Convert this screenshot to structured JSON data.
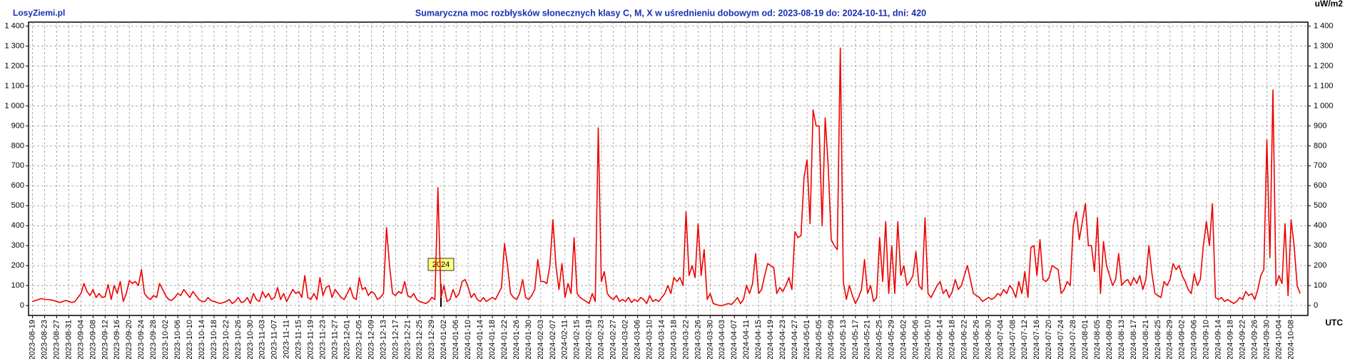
{
  "site": "LosyZiemi.pl",
  "chart_data": {
    "type": "line",
    "title": "Sumaryczna moc rozbłysków słonecznych klasy C, M, X w uśrednieniu dobowym od: 2023-08-19 do: 2024-10-11, dni: 420",
    "y_unit": "uW/m2",
    "x_unit": "UTC",
    "annotation": "2024",
    "color": "#ee0000",
    "grid": true,
    "ylim": [
      -50,
      1420
    ],
    "yticks": [
      0,
      100,
      200,
      300,
      400,
      500,
      600,
      700,
      800,
      900,
      {
        "value": 1000,
        "label": "1 000"
      },
      {
        "value": 1100,
        "label": "1 100"
      },
      {
        "value": 1200,
        "label": "1 200"
      },
      {
        "value": 1300,
        "label": "1 300"
      },
      {
        "value": 1400,
        "label": "1 400"
      }
    ],
    "categories": [
      "2023-08-19",
      null,
      null,
      null,
      "2023-08-23",
      null,
      null,
      null,
      "2023-08-27",
      null,
      null,
      null,
      "2023-08-31",
      null,
      null,
      null,
      "2023-09-04",
      null,
      null,
      null,
      "2023-09-08",
      null,
      null,
      null,
      "2023-09-12",
      null,
      null,
      null,
      "2023-09-16",
      null,
      null,
      null,
      "2023-09-20",
      null,
      null,
      null,
      "2023-09-24",
      null,
      null,
      null,
      "2023-09-28",
      null,
      null,
      null,
      "2023-10-02",
      null,
      null,
      null,
      "2023-10-06",
      null,
      null,
      null,
      "2023-10-10",
      null,
      null,
      null,
      "2023-10-14",
      null,
      null,
      null,
      "2023-10-18",
      null,
      null,
      null,
      "2023-10-22",
      null,
      null,
      null,
      "2023-10-26",
      null,
      null,
      null,
      "2023-10-30",
      null,
      null,
      null,
      "2023-11-03",
      null,
      null,
      null,
      "2023-11-07",
      null,
      null,
      null,
      "2023-11-11",
      null,
      null,
      null,
      "2023-11-15",
      null,
      null,
      null,
      "2023-11-19",
      null,
      null,
      null,
      "2023-11-23",
      null,
      null,
      null,
      "2023-11-27",
      null,
      null,
      null,
      "2023-12-01",
      null,
      null,
      null,
      "2023-12-05",
      null,
      null,
      null,
      "2023-12-09",
      null,
      null,
      null,
      "2023-12-13",
      null,
      null,
      null,
      "2023-12-17",
      null,
      null,
      null,
      "2023-12-21",
      null,
      null,
      null,
      "2023-12-25",
      null,
      null,
      null,
      "2023-12-29",
      null,
      null,
      null,
      "2024-01-02",
      null,
      null,
      null,
      "2024-01-06",
      null,
      null,
      null,
      "2024-01-10",
      null,
      null,
      null,
      "2024-01-14",
      null,
      null,
      null,
      "2024-01-18",
      null,
      null,
      null,
      "2024-01-22",
      null,
      null,
      null,
      "2024-01-26",
      null,
      null,
      null,
      "2024-01-30",
      null,
      null,
      null,
      "2024-02-03",
      null,
      null,
      null,
      "2024-02-07",
      null,
      null,
      null,
      "2024-02-11",
      null,
      null,
      null,
      "2024-02-15",
      null,
      null,
      null,
      "2024-02-19",
      null,
      null,
      null,
      "2024-02-23",
      null,
      null,
      null,
      "2024-02-27",
      null,
      null,
      null,
      "2024-03-02",
      null,
      null,
      null,
      "2024-03-06",
      null,
      null,
      null,
      "2024-03-10",
      null,
      null,
      null,
      "2024-03-14",
      null,
      null,
      null,
      "2024-03-18",
      null,
      null,
      null,
      "2024-03-22",
      null,
      null,
      null,
      "2024-03-26",
      null,
      null,
      null,
      "2024-03-30",
      null,
      null,
      null,
      "2024-04-03",
      null,
      null,
      null,
      "2024-04-07",
      null,
      null,
      null,
      "2024-04-11",
      null,
      null,
      null,
      "2024-04-15",
      null,
      null,
      null,
      "2024-04-19",
      null,
      null,
      null,
      "2024-04-23",
      null,
      null,
      null,
      "2024-04-27",
      null,
      null,
      null,
      "2024-05-01",
      null,
      null,
      null,
      "2024-05-05",
      null,
      null,
      null,
      "2024-05-09",
      null,
      null,
      null,
      "2024-05-13",
      null,
      null,
      null,
      "2024-05-17",
      null,
      null,
      null,
      "2024-05-21",
      null,
      null,
      null,
      "2024-05-25",
      null,
      null,
      null,
      "2024-05-29",
      null,
      null,
      null,
      "2024-06-02",
      null,
      null,
      null,
      "2024-06-06",
      null,
      null,
      null,
      "2024-06-10",
      null,
      null,
      null,
      "2024-06-14",
      null,
      null,
      null,
      "2024-06-18",
      null,
      null,
      null,
      "2024-06-22",
      null,
      null,
      null,
      "2024-06-26",
      null,
      null,
      null,
      "2024-06-30",
      null,
      null,
      null,
      "2024-07-04",
      null,
      null,
      null,
      "2024-07-08",
      null,
      null,
      null,
      "2024-07-12",
      null,
      null,
      null,
      "2024-07-16",
      null,
      null,
      null,
      "2024-07-20",
      null,
      null,
      null,
      "2024-07-24",
      null,
      null,
      null,
      "2024-07-28",
      null,
      null,
      null,
      "2024-08-01",
      null,
      null,
      null,
      "2024-08-05",
      null,
      null,
      null,
      "2024-08-09",
      null,
      null,
      null,
      "2024-08-13",
      null,
      null,
      null,
      "2024-08-17",
      null,
      null,
      null,
      "2024-08-21",
      null,
      null,
      null,
      "2024-08-25",
      null,
      null,
      null,
      "2024-08-29",
      null,
      null,
      null,
      "2024-09-02",
      null,
      null,
      null,
      "2024-09-06",
      null,
      null,
      null,
      "2024-09-10",
      null,
      null,
      null,
      "2024-09-14",
      null,
      null,
      null,
      "2024-09-18",
      null,
      null,
      null,
      "2024-09-22",
      null,
      null,
      null,
      "2024-09-26",
      null,
      null,
      null,
      "2024-09-30",
      null,
      null,
      null,
      "2024-10-04",
      null,
      null,
      null,
      "2024-10-08",
      null,
      null,
      null
    ],
    "values": [
      20,
      25,
      30,
      35,
      30,
      30,
      28,
      25,
      20,
      15,
      20,
      25,
      20,
      15,
      20,
      40,
      60,
      110,
      70,
      50,
      80,
      40,
      60,
      40,
      45,
      105,
      30,
      100,
      60,
      120,
      20,
      60,
      125,
      110,
      120,
      100,
      180,
      60,
      40,
      30,
      50,
      40,
      110,
      80,
      50,
      30,
      25,
      40,
      60,
      50,
      80,
      60,
      40,
      70,
      50,
      30,
      20,
      20,
      40,
      25,
      20,
      15,
      10,
      15,
      20,
      30,
      10,
      20,
      40,
      15,
      20,
      40,
      10,
      60,
      30,
      20,
      70,
      40,
      60,
      30,
      40,
      90,
      30,
      60,
      20,
      50,
      80,
      60,
      70,
      40,
      150,
      40,
      30,
      60,
      30,
      140,
      50,
      90,
      100,
      40,
      80,
      60,
      40,
      30,
      60,
      90,
      40,
      30,
      140,
      80,
      90,
      50,
      70,
      60,
      30,
      40,
      60,
      390,
      200,
      60,
      50,
      70,
      60,
      120,
      50,
      40,
      60,
      30,
      20,
      15,
      10,
      20,
      40,
      30,
      590,
      40,
      100,
      20,
      30,
      80,
      40,
      60,
      120,
      130,
      90,
      40,
      60,
      30,
      20,
      40,
      20,
      30,
      40,
      30,
      60,
      90,
      310,
      200,
      60,
      40,
      30,
      60,
      130,
      40,
      30,
      50,
      80,
      230,
      120,
      120,
      110,
      200,
      430,
      200,
      80,
      210,
      40,
      110,
      60,
      340,
      60,
      40,
      30,
      20,
      10,
      60,
      20,
      890,
      120,
      170,
      60,
      40,
      30,
      50,
      20,
      30,
      20,
      40,
      15,
      30,
      20,
      40,
      30,
      10,
      50,
      20,
      30,
      20,
      40,
      60,
      100,
      60,
      140,
      120,
      140,
      100,
      470,
      150,
      200,
      140,
      410,
      150,
      280,
      30,
      60,
      10,
      5,
      0,
      0,
      5,
      10,
      5,
      20,
      40,
      10,
      30,
      100,
      60,
      110,
      260,
      60,
      80,
      150,
      210,
      200,
      190,
      60,
      90,
      70,
      100,
      140,
      80,
      370,
      340,
      350,
      640,
      730,
      410,
      980,
      900,
      900,
      400,
      940,
      700,
      330,
      300,
      280,
      1290,
      120,
      30,
      100,
      50,
      10,
      40,
      80,
      230,
      60,
      100,
      20,
      40,
      340,
      120,
      420,
      60,
      300,
      60,
      420,
      150,
      200,
      100,
      120,
      150,
      270,
      100,
      80,
      440,
      60,
      40,
      70,
      100,
      120,
      60,
      80,
      40,
      70,
      130,
      80,
      100,
      150,
      200,
      130,
      60,
      50,
      40,
      20,
      30,
      40,
      30,
      40,
      60,
      50,
      80,
      60,
      100,
      80,
      40,
      120,
      60,
      170,
      40,
      290,
      300,
      150,
      330,
      130,
      120,
      140,
      200,
      190,
      180,
      60,
      80,
      120,
      100,
      400,
      470,
      330,
      420,
      510,
      300,
      300,
      170,
      440,
      60,
      320,
      200,
      150,
      100,
      130,
      260,
      100,
      120,
      130,
      100,
      140,
      110,
      150,
      80,
      130,
      300,
      160,
      60,
      50,
      40,
      120,
      100,
      130,
      210,
      180,
      200,
      150,
      120,
      80,
      60,
      160,
      100,
      130,
      300,
      420,
      300,
      510,
      40,
      30,
      40,
      20,
      30,
      20,
      10,
      20,
      40,
      30,
      70,
      50,
      60,
      30,
      80,
      150,
      180,
      830,
      240,
      1080,
      100,
      150,
      110,
      410,
      50,
      430,
      300,
      100,
      60
    ]
  }
}
